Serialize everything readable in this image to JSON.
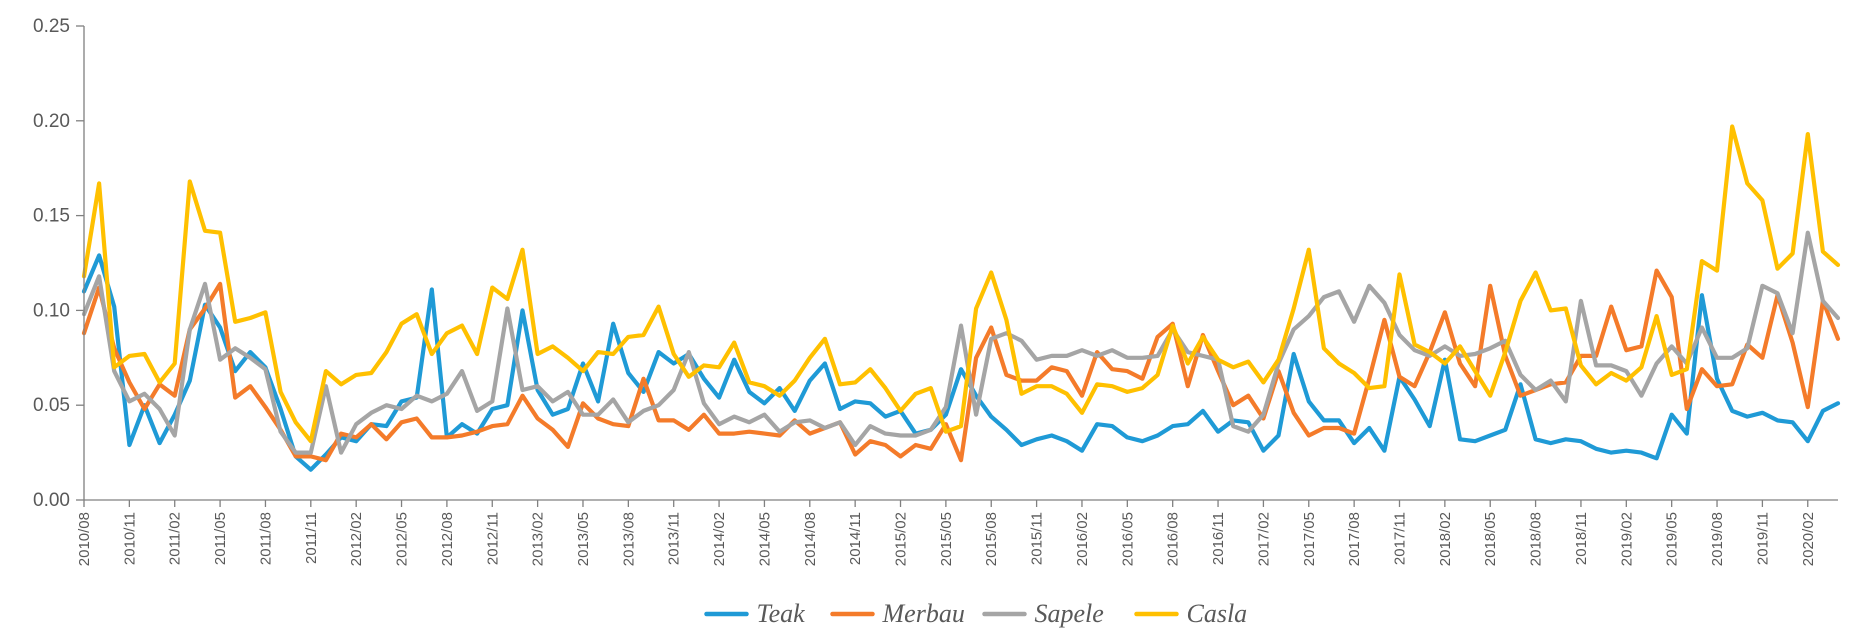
{
  "chart_data": {
    "type": "line",
    "title": "",
    "xlabel": "",
    "ylabel": "",
    "ylim": [
      0,
      0.25
    ],
    "yticks": [
      "0.00",
      "0.05",
      "0.10",
      "0.15",
      "0.20",
      "0.25"
    ],
    "x_start": "2010/08",
    "x_end": "2020/04",
    "x_ticks": [
      "2010/08",
      "2010/11",
      "2011/02",
      "2011/05",
      "2011/08",
      "2011/11",
      "2012/02",
      "2012/05",
      "2012/08",
      "2012/11",
      "2013/02",
      "2013/05",
      "2013/08",
      "2013/11",
      "2014/02",
      "2014/05",
      "2014/08",
      "2014/11",
      "2015/02",
      "2015/05",
      "2015/08",
      "2015/11",
      "2016/02",
      "2016/05",
      "2016/08",
      "2016/11",
      "2017/02",
      "2017/05",
      "2017/08",
      "2017/11",
      "2018/02",
      "2018/05",
      "2018/08",
      "2018/11",
      "2019/02",
      "2019/05",
      "2019/08",
      "2019/11",
      "2020/02"
    ],
    "grid": false,
    "legend_position": "bottom",
    "series": [
      {
        "name": "Teak",
        "color": "#1F9AD6",
        "values": [
          0.11,
          0.129,
          0.102,
          0.029,
          0.05,
          0.03,
          0.045,
          0.063,
          0.103,
          0.091,
          0.068,
          0.078,
          0.07,
          0.048,
          0.023,
          0.016,
          0.024,
          0.033,
          0.031,
          0.04,
          0.039,
          0.052,
          0.054,
          0.111,
          0.033,
          0.04,
          0.035,
          0.048,
          0.05,
          0.1,
          0.058,
          0.045,
          0.048,
          0.072,
          0.052,
          0.093,
          0.067,
          0.057,
          0.078,
          0.072,
          0.077,
          0.064,
          0.054,
          0.074,
          0.057,
          0.051,
          0.059,
          0.047,
          0.063,
          0.072,
          0.048,
          0.052,
          0.051,
          0.044,
          0.047,
          0.035,
          0.037,
          0.045,
          0.069,
          0.055,
          0.044,
          0.037,
          0.029,
          0.032,
          0.034,
          0.031,
          0.026,
          0.04,
          0.039,
          0.033,
          0.031,
          0.034,
          0.039,
          0.04,
          0.047,
          0.036,
          0.042,
          0.041,
          0.026,
          0.034,
          0.077,
          0.052,
          0.042,
          0.042,
          0.03,
          0.038,
          0.026,
          0.065,
          0.053,
          0.039,
          0.074,
          0.032,
          0.031,
          0.034,
          0.037,
          0.061,
          0.032,
          0.03,
          0.032,
          0.031,
          0.027,
          0.025,
          0.026,
          0.025,
          0.022,
          0.045,
          0.035,
          0.108,
          0.064,
          0.047,
          0.044,
          0.046,
          0.042,
          0.041,
          0.031,
          0.047,
          0.051
        ]
      },
      {
        "name": "Merbau",
        "color": "#F47B2A",
        "values": [
          0.088,
          0.112,
          0.08,
          0.062,
          0.048,
          0.061,
          0.055,
          0.09,
          0.101,
          0.114,
          0.054,
          0.06,
          0.049,
          0.037,
          0.023,
          0.023,
          0.021,
          0.035,
          0.033,
          0.04,
          0.032,
          0.041,
          0.043,
          0.033,
          0.033,
          0.034,
          0.036,
          0.039,
          0.04,
          0.055,
          0.043,
          0.037,
          0.028,
          0.051,
          0.043,
          0.04,
          0.039,
          0.064,
          0.042,
          0.042,
          0.037,
          0.045,
          0.035,
          0.035,
          0.036,
          0.035,
          0.034,
          0.042,
          0.035,
          0.038,
          0.041,
          0.024,
          0.031,
          0.029,
          0.023,
          0.029,
          0.027,
          0.04,
          0.021,
          0.075,
          0.091,
          0.066,
          0.063,
          0.063,
          0.07,
          0.068,
          0.055,
          0.078,
          0.069,
          0.068,
          0.064,
          0.086,
          0.093,
          0.06,
          0.087,
          0.068,
          0.05,
          0.055,
          0.043,
          0.068,
          0.046,
          0.034,
          0.038,
          0.038,
          0.035,
          0.064,
          0.095,
          0.065,
          0.06,
          0.078,
          0.099,
          0.072,
          0.06,
          0.113,
          0.076,
          0.055,
          0.058,
          0.061,
          0.062,
          0.076,
          0.076,
          0.102,
          0.079,
          0.081,
          0.121,
          0.107,
          0.048,
          0.069,
          0.06,
          0.061,
          0.082,
          0.075,
          0.108,
          0.083,
          0.049,
          0.105,
          0.085
        ]
      },
      {
        "name": "Sapele",
        "color": "#A5A5A5",
        "values": [
          0.098,
          0.118,
          0.068,
          0.052,
          0.056,
          0.048,
          0.034,
          0.09,
          0.114,
          0.074,
          0.08,
          0.075,
          0.069,
          0.036,
          0.025,
          0.025,
          0.06,
          0.025,
          0.04,
          0.046,
          0.05,
          0.048,
          0.055,
          0.052,
          0.056,
          0.068,
          0.047,
          0.052,
          0.101,
          0.058,
          0.06,
          0.052,
          0.057,
          0.045,
          0.045,
          0.053,
          0.041,
          0.047,
          0.05,
          0.058,
          0.078,
          0.051,
          0.04,
          0.044,
          0.041,
          0.045,
          0.036,
          0.041,
          0.042,
          0.038,
          0.041,
          0.029,
          0.039,
          0.035,
          0.034,
          0.034,
          0.037,
          0.049,
          0.092,
          0.045,
          0.085,
          0.088,
          0.084,
          0.074,
          0.076,
          0.076,
          0.079,
          0.076,
          0.079,
          0.075,
          0.075,
          0.076,
          0.09,
          0.078,
          0.076,
          0.074,
          0.039,
          0.036,
          0.045,
          0.072,
          0.09,
          0.097,
          0.107,
          0.11,
          0.094,
          0.113,
          0.104,
          0.087,
          0.079,
          0.076,
          0.081,
          0.076,
          0.077,
          0.08,
          0.084,
          0.066,
          0.058,
          0.063,
          0.052,
          0.105,
          0.071,
          0.071,
          0.068,
          0.055,
          0.072,
          0.081,
          0.072,
          0.091,
          0.075,
          0.075,
          0.08,
          0.113,
          0.109,
          0.088,
          0.141,
          0.105,
          0.096
        ]
      },
      {
        "name": "Casla",
        "color": "#FFC000",
        "values": [
          0.118,
          0.167,
          0.07,
          0.076,
          0.077,
          0.062,
          0.072,
          0.168,
          0.142,
          0.141,
          0.094,
          0.096,
          0.099,
          0.057,
          0.041,
          0.031,
          0.068,
          0.061,
          0.066,
          0.067,
          0.078,
          0.093,
          0.098,
          0.077,
          0.088,
          0.092,
          0.077,
          0.112,
          0.106,
          0.132,
          0.077,
          0.081,
          0.075,
          0.068,
          0.078,
          0.077,
          0.086,
          0.087,
          0.102,
          0.077,
          0.065,
          0.071,
          0.07,
          0.083,
          0.062,
          0.06,
          0.055,
          0.063,
          0.075,
          0.085,
          0.061,
          0.062,
          0.069,
          0.059,
          0.047,
          0.056,
          0.059,
          0.036,
          0.039,
          0.101,
          0.12,
          0.095,
          0.056,
          0.06,
          0.06,
          0.056,
          0.046,
          0.061,
          0.06,
          0.057,
          0.059,
          0.066,
          0.092,
          0.072,
          0.086,
          0.074,
          0.07,
          0.073,
          0.062,
          0.074,
          0.101,
          0.132,
          0.08,
          0.072,
          0.067,
          0.059,
          0.06,
          0.119,
          0.082,
          0.078,
          0.072,
          0.081,
          0.068,
          0.055,
          0.078,
          0.105,
          0.12,
          0.1,
          0.101,
          0.071,
          0.061,
          0.067,
          0.063,
          0.07,
          0.097,
          0.066,
          0.069,
          0.126,
          0.121,
          0.197,
          0.167,
          0.158,
          0.122,
          0.13,
          0.193,
          0.131,
          0.124
        ]
      }
    ]
  }
}
